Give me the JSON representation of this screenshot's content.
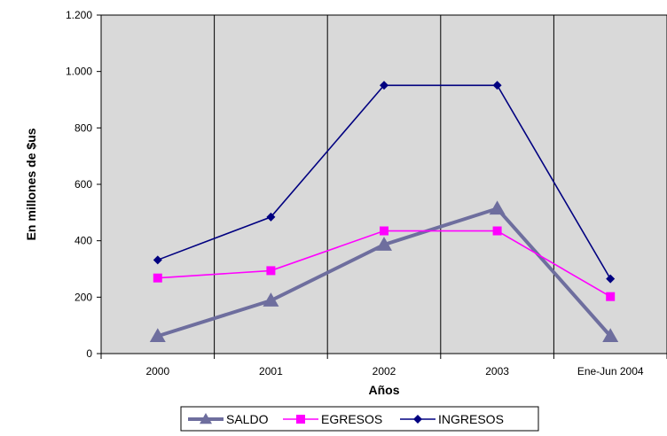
{
  "chart_data": {
    "type": "line",
    "categories": [
      "2000",
      "2001",
      "2002",
      "2003",
      "Ene-Jun 2004"
    ],
    "series": [
      {
        "name": "SALDO",
        "values": [
          62,
          188,
          386,
          514,
          62
        ],
        "color": "#6E6E9E",
        "marker": "triangle"
      },
      {
        "name": "EGRESOS",
        "values": [
          268,
          294,
          435,
          435,
          202
        ],
        "color": "#FF00FF",
        "marker": "square"
      },
      {
        "name": "INGRESOS",
        "values": [
          332,
          484,
          951,
          951,
          265
        ],
        "color": "#000080",
        "marker": "diamond"
      }
    ],
    "xlabel": "Años",
    "ylabel": "En millones de $us",
    "ylim": [
      0,
      1200
    ],
    "yticks": [
      0,
      200,
      400,
      600,
      800,
      1000,
      1200
    ],
    "ytick_labels": [
      "0",
      "200",
      "400",
      "600",
      "800",
      "1.000",
      "1.200"
    ],
    "plot_background": "#D9D9D9",
    "grid": "vertical",
    "legend_position": "bottom"
  }
}
